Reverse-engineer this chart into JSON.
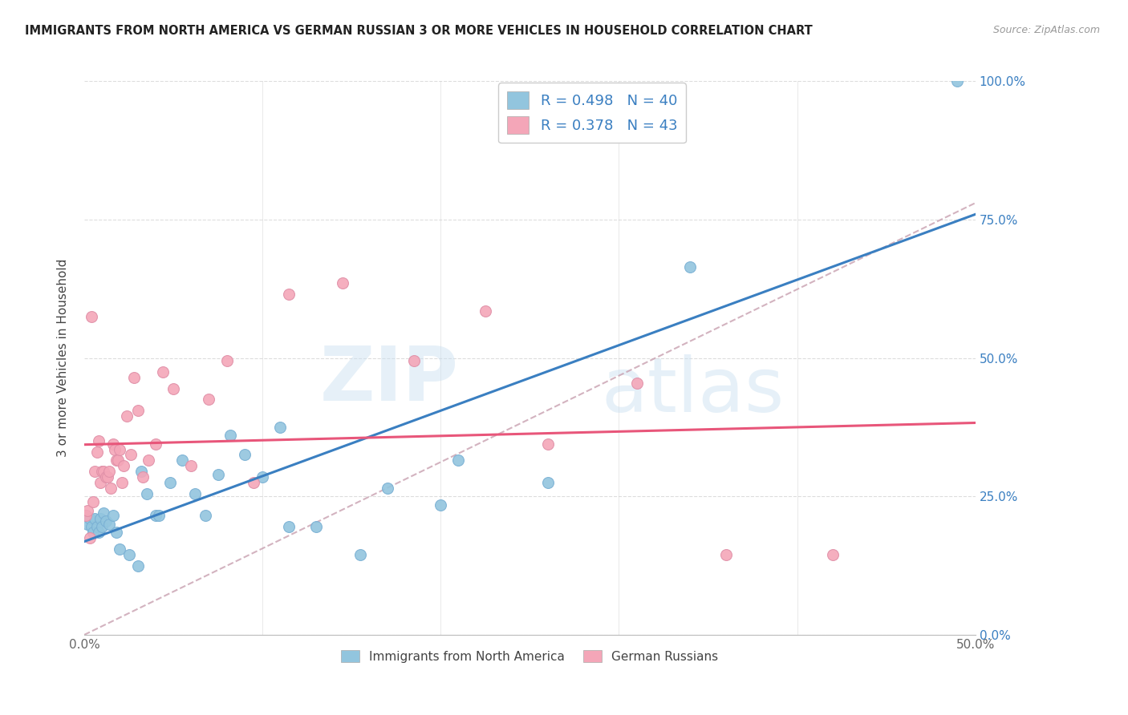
{
  "title": "IMMIGRANTS FROM NORTH AMERICA VS GERMAN RUSSIAN 3 OR MORE VEHICLES IN HOUSEHOLD CORRELATION CHART",
  "source": "Source: ZipAtlas.com",
  "ylabel_label": "3 or more Vehicles in Household",
  "legend_label1": "Immigrants from North America",
  "legend_label2": "German Russians",
  "R1": 0.498,
  "N1": 40,
  "R2": 0.378,
  "N2": 43,
  "color_blue": "#92c5de",
  "color_pink": "#f4a6b8",
  "color_line_blue": "#3a7fc1",
  "color_line_pink": "#e8567a",
  "color_dashed": "#c8a0b0",
  "watermark_zip": "ZIP",
  "watermark_atlas": "atlas",
  "xlim": [
    0.0,
    0.5
  ],
  "ylim": [
    0.0,
    1.0
  ],
  "x_tick_vals": [
    0.0,
    0.1,
    0.2,
    0.3,
    0.4,
    0.5
  ],
  "x_tick_labels": [
    "0.0%",
    "",
    "",
    "",
    "",
    "50.0%"
  ],
  "y_tick_vals": [
    0.0,
    0.25,
    0.5,
    0.75,
    1.0
  ],
  "y_tick_labels": [
    "0.0%",
    "25.0%",
    "50.0%",
    "75.0%",
    "100.0%"
  ],
  "blue_x": [
    0.001,
    0.002,
    0.003,
    0.004,
    0.005,
    0.006,
    0.007,
    0.008,
    0.009,
    0.01,
    0.011,
    0.012,
    0.014,
    0.016,
    0.018,
    0.02,
    0.025,
    0.03,
    0.032,
    0.035,
    0.04,
    0.042,
    0.048,
    0.055,
    0.062,
    0.068,
    0.075,
    0.082,
    0.09,
    0.1,
    0.11,
    0.115,
    0.13,
    0.155,
    0.17,
    0.2,
    0.21,
    0.26,
    0.34,
    0.49
  ],
  "blue_y": [
    0.215,
    0.2,
    0.21,
    0.195,
    0.185,
    0.21,
    0.195,
    0.185,
    0.21,
    0.195,
    0.22,
    0.205,
    0.2,
    0.215,
    0.185,
    0.155,
    0.145,
    0.125,
    0.295,
    0.255,
    0.215,
    0.215,
    0.275,
    0.315,
    0.255,
    0.215,
    0.29,
    0.36,
    0.325,
    0.285,
    0.375,
    0.195,
    0.195,
    0.145,
    0.265,
    0.235,
    0.315,
    0.275,
    0.665,
    1.0
  ],
  "pink_x": [
    0.001,
    0.002,
    0.003,
    0.004,
    0.005,
    0.006,
    0.007,
    0.008,
    0.009,
    0.01,
    0.011,
    0.012,
    0.013,
    0.014,
    0.015,
    0.016,
    0.017,
    0.018,
    0.019,
    0.02,
    0.021,
    0.022,
    0.024,
    0.026,
    0.028,
    0.03,
    0.033,
    0.036,
    0.04,
    0.044,
    0.05,
    0.06,
    0.07,
    0.08,
    0.095,
    0.115,
    0.145,
    0.185,
    0.225,
    0.26,
    0.31,
    0.36,
    0.42
  ],
  "pink_y": [
    0.215,
    0.225,
    0.175,
    0.575,
    0.24,
    0.295,
    0.33,
    0.35,
    0.275,
    0.295,
    0.295,
    0.285,
    0.285,
    0.295,
    0.265,
    0.345,
    0.335,
    0.315,
    0.315,
    0.335,
    0.275,
    0.305,
    0.395,
    0.325,
    0.465,
    0.405,
    0.285,
    0.315,
    0.345,
    0.475,
    0.445,
    0.305,
    0.425,
    0.495,
    0.275,
    0.615,
    0.635,
    0.495,
    0.585,
    0.345,
    0.455,
    0.145,
    0.145
  ]
}
